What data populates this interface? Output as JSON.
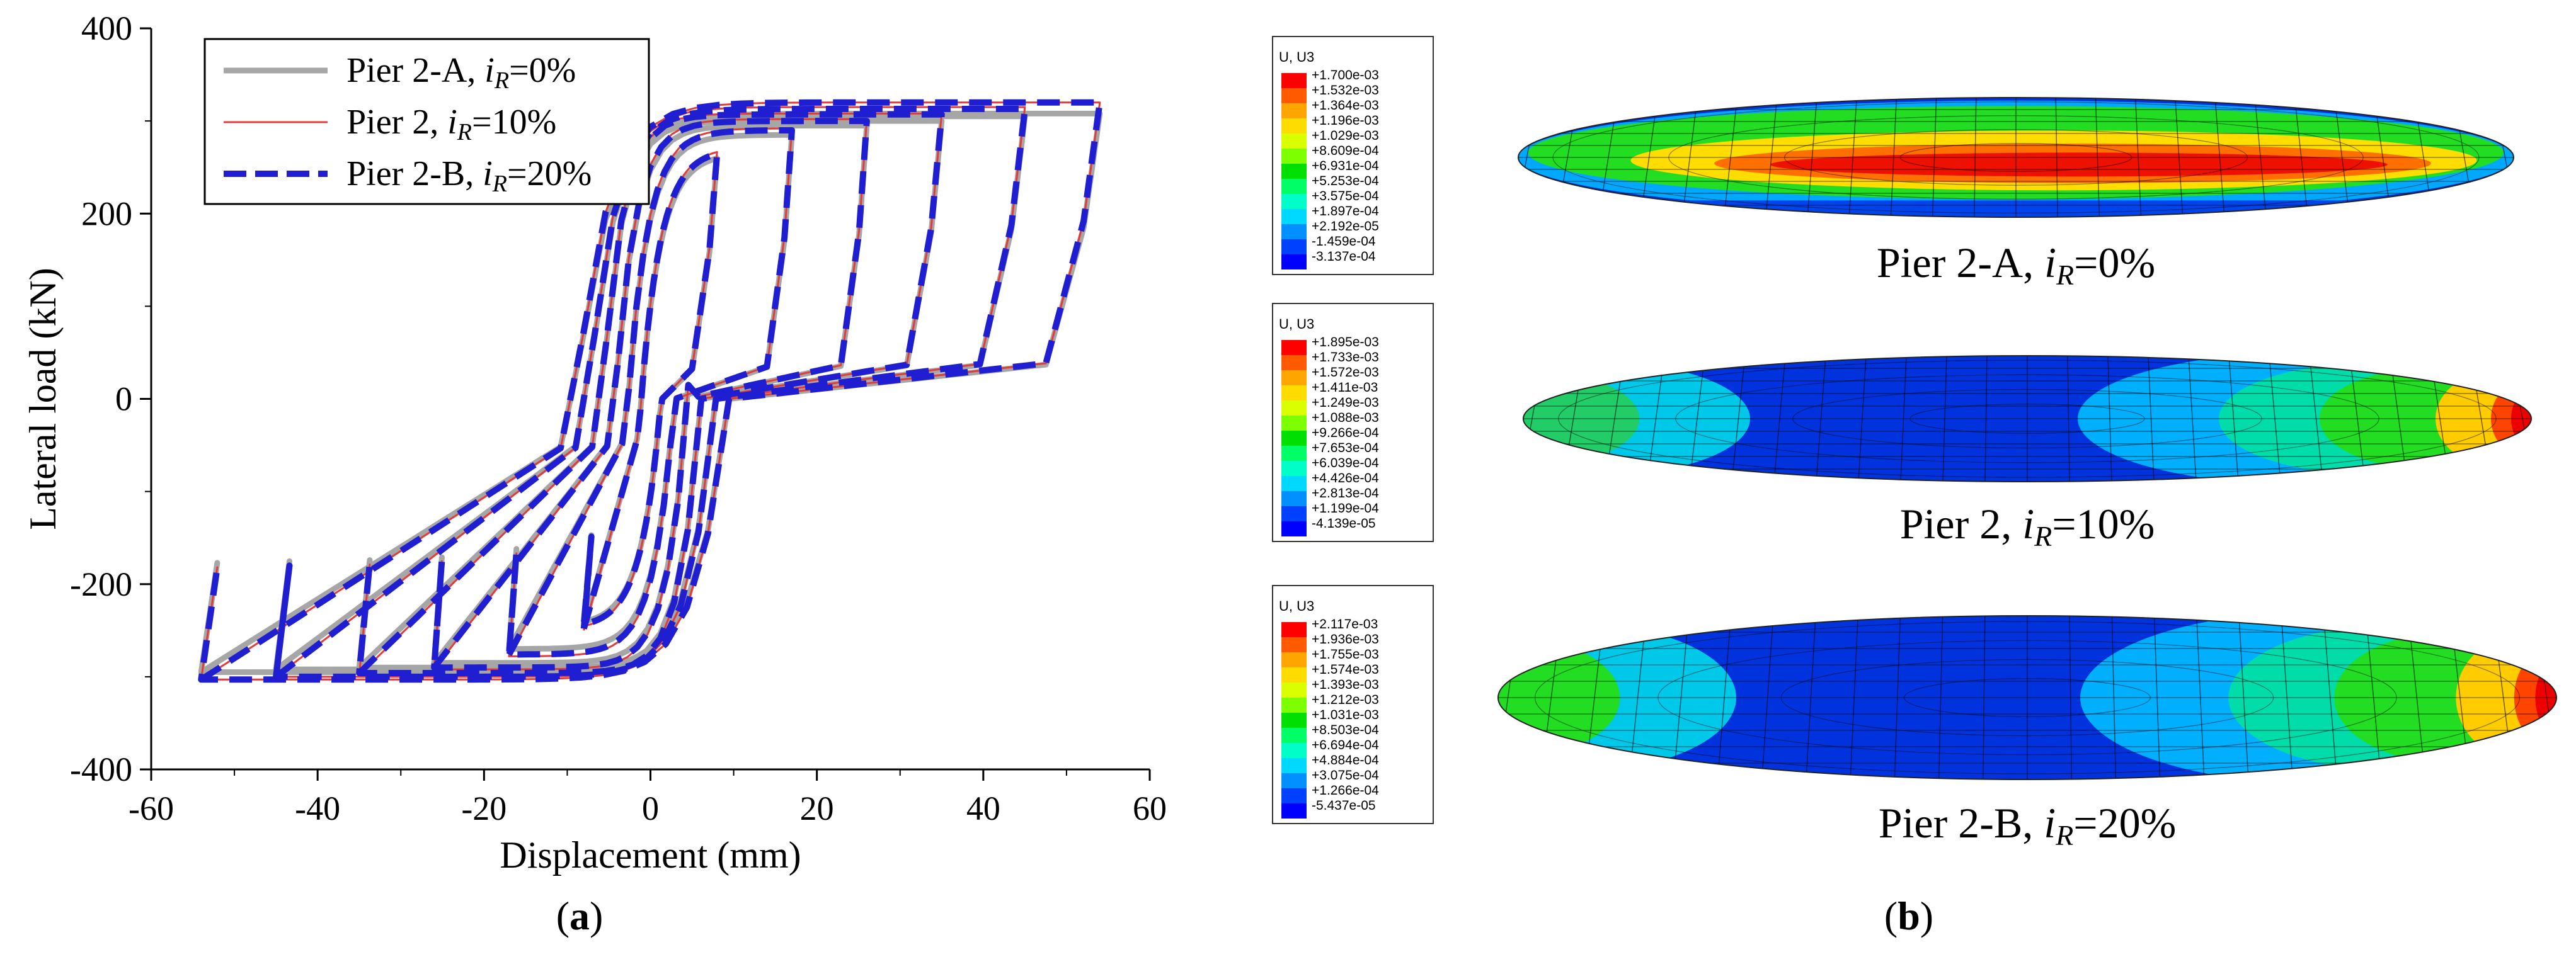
{
  "chart_data": {
    "type": "line",
    "title": "",
    "xlabel": "Displacement (mm)",
    "ylabel": "Lateral load (kN)",
    "xlim": [
      -60,
      60
    ],
    "ylim": [
      -400,
      400
    ],
    "xticks": [
      "-60",
      "-40",
      "-20",
      "0",
      "20",
      "40",
      "60"
    ],
    "yticks": [
      "400",
      "200",
      "0",
      "-200",
      "-400"
    ],
    "legend_position": "top-left",
    "legend": [
      {
        "base": "Pier 2-A, ",
        "sym": "i",
        "sub": "R",
        "val": "=0%"
      },
      {
        "base": "Pier 2, ",
        "sym": "i",
        "sub": "R",
        "val": "=10%"
      },
      {
        "base": "Pier 2-B, ",
        "sym": "i",
        "sub": "R",
        "val": "=20%"
      }
    ],
    "series": [
      {
        "name": "Pier 2-A, iR=0%",
        "color": "#a6a6a6",
        "style": "solid-thick",
        "loops": [
          {
            "amp": 8,
            "pos_peak": 265,
            "neg_peak": -245
          },
          {
            "amp": 17,
            "pos_peak": 285,
            "neg_peak": -270
          },
          {
            "amp": 26,
            "pos_peak": 295,
            "neg_peak": -285
          },
          {
            "amp": 35,
            "pos_peak": 300,
            "neg_peak": -290
          },
          {
            "amp": 45,
            "pos_peak": 305,
            "neg_peak": -292
          },
          {
            "amp": 54,
            "pos_peak": 308,
            "neg_peak": -295
          }
        ]
      },
      {
        "name": "Pier 2, iR=10%",
        "color": "#e23b3b",
        "style": "solid-thin",
        "loops": [
          {
            "amp": 8,
            "pos_peak": 272,
            "neg_peak": -250
          },
          {
            "amp": 17,
            "pos_peak": 292,
            "neg_peak": -278
          },
          {
            "amp": 26,
            "pos_peak": 302,
            "neg_peak": -292
          },
          {
            "amp": 35,
            "pos_peak": 308,
            "neg_peak": -298
          },
          {
            "amp": 45,
            "pos_peak": 315,
            "neg_peak": -300
          },
          {
            "amp": 54,
            "pos_peak": 320,
            "neg_peak": -303
          }
        ]
      },
      {
        "name": "Pier 2-B, iR=20%",
        "color": "#1f1fd1",
        "style": "dashed-thick",
        "loops": [
          {
            "amp": 8,
            "pos_peak": 270,
            "neg_peak": -248
          },
          {
            "amp": 17,
            "pos_peak": 290,
            "neg_peak": -276
          },
          {
            "amp": 26,
            "pos_peak": 300,
            "neg_peak": -290
          },
          {
            "amp": 35,
            "pos_peak": 307,
            "neg_peak": -296
          },
          {
            "amp": 45,
            "pos_peak": 313,
            "neg_peak": -300
          },
          {
            "amp": 54,
            "pos_peak": 320,
            "neg_peak": -303
          }
        ]
      }
    ]
  },
  "captions": {
    "a": {
      "open": "(",
      "letter": "a",
      "close": ")"
    },
    "b": {
      "open": "(",
      "letter": "b",
      "close": ")"
    }
  },
  "contours": [
    {
      "id": "pier-2a",
      "title_base": "Pier 2-A, ",
      "sym": "i",
      "sub": "R",
      "val": "=0%",
      "legend_header": "U, U3",
      "legend_values": [
        "+1.700e-03",
        "+1.532e-03",
        "+1.364e-03",
        "+1.196e-03",
        "+1.029e-03",
        "+8.609e-04",
        "+6.931e-04",
        "+5.253e-04",
        "+3.575e-04",
        "+1.897e-04",
        "+2.192e-05",
        "-1.459e-04",
        "-3.137e-04"
      ],
      "pattern": "center-red"
    },
    {
      "id": "pier-2",
      "title_base": "Pier 2, ",
      "sym": "i",
      "sub": "R",
      "val": "=10%",
      "legend_header": "U, U3",
      "legend_values": [
        "+1.895e-03",
        "+1.733e-03",
        "+1.572e-03",
        "+1.411e-03",
        "+1.249e-03",
        "+1.088e-03",
        "+9.266e-04",
        "+7.653e-04",
        "+6.039e-04",
        "+4.426e-04",
        "+2.813e-04",
        "+1.199e-04",
        "-4.139e-05"
      ],
      "pattern": "right-red"
    },
    {
      "id": "pier-2b",
      "title_base": "Pier 2-B, ",
      "sym": "i",
      "sub": "R",
      "val": "=20%",
      "legend_header": "U, U3",
      "legend_values": [
        "+2.117e-03",
        "+1.936e-03",
        "+1.755e-03",
        "+1.574e-03",
        "+1.393e-03",
        "+1.212e-03",
        "+1.031e-03",
        "+8.503e-04",
        "+6.694e-04",
        "+4.884e-04",
        "+3.075e-04",
        "+1.266e-04",
        "-5.437e-05"
      ],
      "pattern": "right-red-strong"
    }
  ],
  "colorbar": [
    "#ff0000",
    "#ff5a00",
    "#ffa500",
    "#ffdc00",
    "#d9ff00",
    "#7dff00",
    "#00e000",
    "#00ff66",
    "#00ffc8",
    "#00d9ff",
    "#0090ff",
    "#0040ff",
    "#0000ff"
  ]
}
